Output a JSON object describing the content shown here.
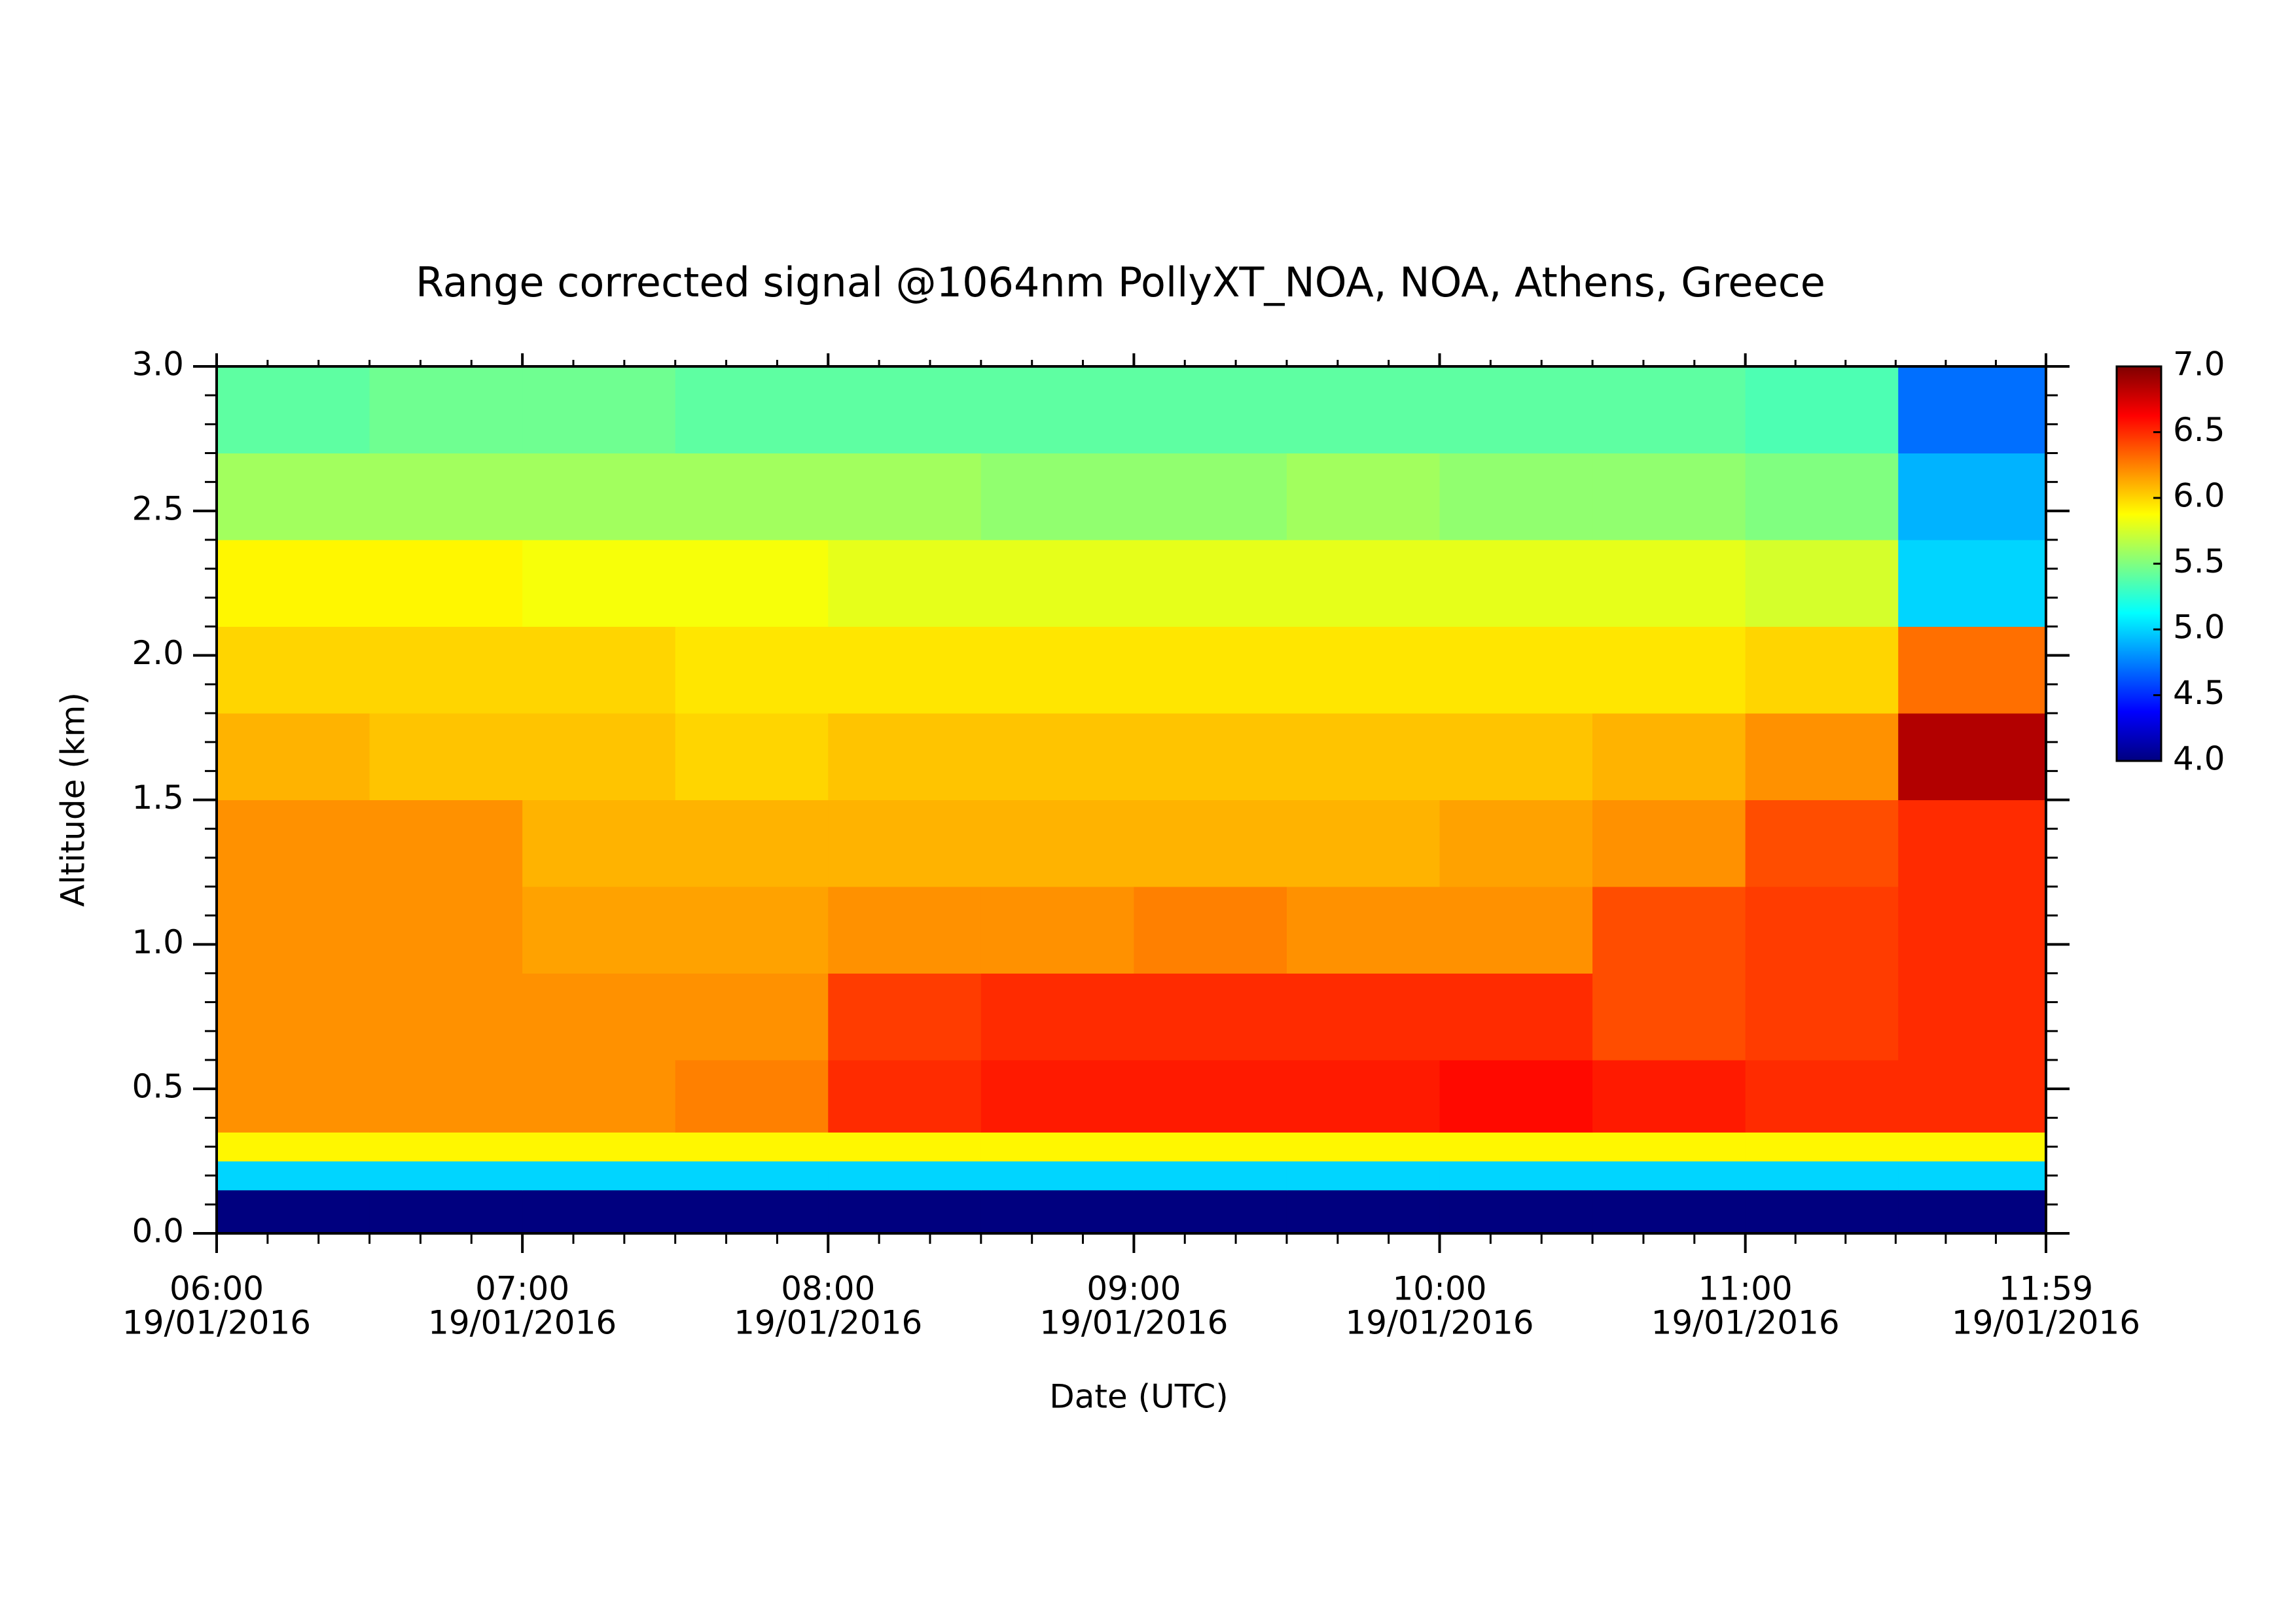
{
  "chart_data": {
    "type": "heatmap",
    "title": "Range corrected signal @1064nm  PollyXT_NOA, NOA, Athens, Greece",
    "xlabel": "Date (UTC)",
    "ylabel": "Altitude (km)",
    "xlim": [
      6,
      11.9833
    ],
    "xticks": [
      {
        "value": 6,
        "label": "06:00",
        "date": "19/01/2016"
      },
      {
        "value": 7,
        "label": "07:00",
        "date": "19/01/2016"
      },
      {
        "value": 8,
        "label": "08:00",
        "date": "19/01/2016"
      },
      {
        "value": 9,
        "label": "09:00",
        "date": "19/01/2016"
      },
      {
        "value": 10,
        "label": "10:00",
        "date": "19/01/2016"
      },
      {
        "value": 11,
        "label": "11:00",
        "date": "19/01/2016"
      },
      {
        "value": 11.9833,
        "label": "11:59",
        "date": "19/01/2016"
      }
    ],
    "ylim": [
      0,
      3
    ],
    "yticks": [
      {
        "value": 0,
        "label": "0.0"
      },
      {
        "value": 0.5,
        "label": "0.5"
      },
      {
        "value": 1,
        "label": "1.0"
      },
      {
        "value": 1.5,
        "label": "1.5"
      },
      {
        "value": 2,
        "label": "2.0"
      },
      {
        "value": 2.5,
        "label": "2.5"
      },
      {
        "value": 3,
        "label": "3.0"
      }
    ],
    "x_edges": [
      6,
      6.5,
      7,
      7.5,
      8,
      8.5,
      9,
      9.5,
      10,
      10.5,
      11,
      11.5,
      11.9833
    ],
    "y_edges": [
      0,
      0.15,
      0.25,
      0.35,
      0.6,
      0.9,
      1.2,
      1.5,
      1.8,
      2.1,
      2.4,
      2.7,
      3.0
    ],
    "z": [
      [
        4.0,
        4.0,
        4.0,
        4.0,
        4.0,
        4.0,
        4.0,
        4.0,
        4.0,
        4.0,
        4.0,
        4.0
      ],
      [
        5.0,
        5.0,
        5.0,
        5.0,
        5.0,
        5.0,
        5.0,
        5.0,
        5.0,
        5.0,
        5.0,
        5.0
      ],
      [
        5.9,
        5.9,
        5.9,
        5.9,
        5.9,
        5.9,
        5.9,
        5.9,
        5.9,
        5.9,
        5.9,
        5.9
      ],
      [
        6.2,
        6.2,
        6.2,
        6.25,
        6.5,
        6.55,
        6.55,
        6.55,
        6.6,
        6.55,
        6.5,
        6.5
      ],
      [
        6.2,
        6.2,
        6.2,
        6.2,
        6.45,
        6.5,
        6.5,
        6.5,
        6.5,
        6.4,
        6.45,
        6.5
      ],
      [
        6.2,
        6.2,
        6.15,
        6.15,
        6.2,
        6.2,
        6.25,
        6.2,
        6.2,
        6.4,
        6.45,
        6.5
      ],
      [
        6.2,
        6.2,
        6.1,
        6.1,
        6.1,
        6.1,
        6.1,
        6.1,
        6.15,
        6.2,
        6.4,
        6.5
      ],
      [
        6.1,
        6.05,
        6.05,
        6.0,
        6.05,
        6.05,
        6.05,
        6.05,
        6.05,
        6.1,
        6.2,
        6.85
      ],
      [
        6.0,
        6.0,
        6.0,
        5.95,
        5.95,
        5.95,
        5.95,
        5.95,
        5.95,
        5.95,
        6.0,
        6.3
      ],
      [
        5.9,
        5.9,
        5.85,
        5.85,
        5.8,
        5.8,
        5.8,
        5.8,
        5.8,
        5.8,
        5.75,
        5.0
      ],
      [
        5.6,
        5.6,
        5.6,
        5.6,
        5.6,
        5.55,
        5.55,
        5.6,
        5.55,
        5.55,
        5.5,
        4.9
      ],
      [
        5.4,
        5.45,
        5.45,
        5.4,
        5.4,
        5.4,
        5.4,
        5.4,
        5.4,
        5.4,
        5.35,
        4.7
      ]
    ],
    "clim": [
      4,
      7
    ],
    "cticks": [
      {
        "value": 4,
        "label": "4.0"
      },
      {
        "value": 4.5,
        "label": "4.5"
      },
      {
        "value": 5,
        "label": "5.0"
      },
      {
        "value": 5.5,
        "label": "5.5"
      },
      {
        "value": 6,
        "label": "6.0"
      },
      {
        "value": 6.5,
        "label": "6.5"
      },
      {
        "value": 7,
        "label": "7.0"
      }
    ],
    "colormap": [
      "#00007f",
      "#0000ff",
      "#0080ff",
      "#00ffff",
      "#80ff80",
      "#ffff00",
      "#ff8000",
      "#ff0000",
      "#7f0000"
    ]
  }
}
